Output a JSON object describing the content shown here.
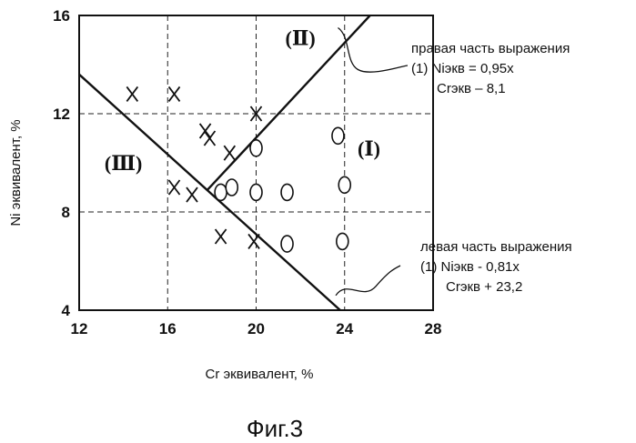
{
  "chart_data": {
    "type": "scatter",
    "title": "",
    "xlabel": "Cr эквивалент, %",
    "ylabel": "Ni эквивалент, %",
    "xlim": [
      12,
      28
    ],
    "ylim": [
      4,
      16
    ],
    "xticks": [
      "12",
      "16",
      "20",
      "24",
      "28"
    ],
    "yticks": [
      "4",
      "8",
      "12",
      "16"
    ],
    "grid": "dashed",
    "series": [
      {
        "marker": "x",
        "points": [
          [
            14.4,
            12.8
          ],
          [
            16.3,
            12.8
          ],
          [
            16.3,
            9.0
          ],
          [
            17.1,
            8.7
          ],
          [
            17.9,
            11.0
          ],
          [
            17.7,
            11.3
          ],
          [
            18.8,
            10.4
          ],
          [
            18.4,
            7.0
          ],
          [
            20.0,
            12.0
          ],
          [
            19.9,
            6.8
          ]
        ]
      },
      {
        "marker": "o",
        "points": [
          [
            20.0,
            10.6
          ],
          [
            23.7,
            11.1
          ],
          [
            18.4,
            8.8
          ],
          [
            18.9,
            9.0
          ],
          [
            20.0,
            8.8
          ],
          [
            21.4,
            8.8
          ],
          [
            24.0,
            9.1
          ],
          [
            21.4,
            6.7
          ],
          [
            23.9,
            6.8
          ]
        ]
      }
    ],
    "lines": [
      {
        "from": [
          17.8,
          8.9
        ],
        "to": [
          25.15,
          16.0
        ]
      },
      {
        "from": [
          12.0,
          13.6
        ],
        "to": [
          23.8,
          4.0
        ]
      }
    ],
    "region_labels": [
      {
        "text": "(Ⅰ)",
        "x": 25.1,
        "y": 10.3
      },
      {
        "text": "(Ⅱ)",
        "x": 22.0,
        "y": 14.8
      },
      {
        "text": "(Ⅲ)",
        "x": 14.0,
        "y": 9.7
      }
    ],
    "annotations": [
      {
        "lines": [
          "правая часть выражения",
          "(1) Niэкв = 0,95x",
          "Crэкв – 8,1"
        ],
        "target": [
          23.7,
          15.5
        ]
      },
      {
        "lines": [
          "левая часть выражения",
          "(1) Niэкв - 0,81x",
          "Crэкв + 23,2"
        ],
        "target": [
          23.6,
          4.6
        ]
      }
    ],
    "caption": "Фиг.3"
  }
}
